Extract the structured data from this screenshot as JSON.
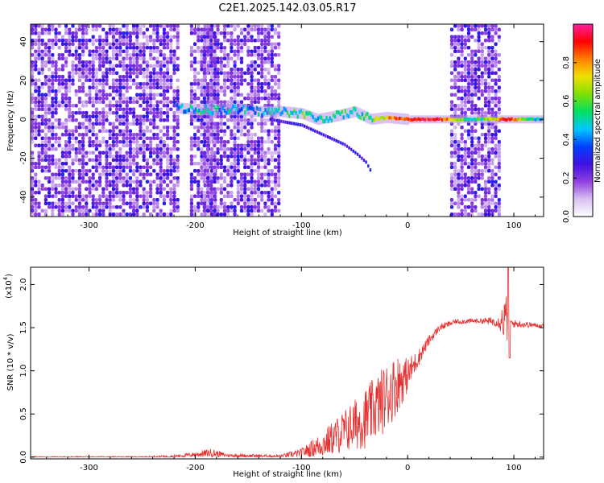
{
  "figure": {
    "title": "C2E1.2025.142.03.05.R17"
  },
  "colors": {
    "colormap": [
      "#ffffff",
      "#d8c0f0",
      "#9040e0",
      "#4010e0",
      "#0040ff",
      "#00c8ff",
      "#00e060",
      "#80e000",
      "#f0e000",
      "#ff8000",
      "#ff0000",
      "#ff20a0"
    ],
    "snr_line": "#e83030"
  },
  "chart_data": [
    {
      "type": "heatmap",
      "name": "spectrogram",
      "xlabel": "Height of straight line (km)",
      "ylabel": "Frequency (Hz)",
      "xlim": [
        -355,
        128
      ],
      "ylim": [
        -50,
        49
      ],
      "xticks": [
        -300,
        -200,
        -100,
        0,
        100
      ],
      "yticks": [
        -40,
        -20,
        0,
        20,
        40
      ],
      "colorbar": {
        "label": "Normalized spectral amplitude",
        "range": [
          0,
          1
        ],
        "ticks": [
          "0.0",
          "0.2",
          "0.4",
          "0.6",
          "0.8"
        ],
        "tick_values": [
          0.0,
          0.2,
          0.4,
          0.6,
          0.8
        ]
      },
      "noise_regions_km": [
        [
          -355,
          -218
        ],
        [
          -205,
          -182
        ],
        [
          -193,
          -120
        ],
        [
          40,
          87
        ]
      ],
      "empty_regions_km": [
        [
          -120,
          -35
        ],
        [
          87,
          128
        ]
      ],
      "signal_track": [
        {
          "x": -218,
          "freq": 6,
          "amp": 0.35
        },
        {
          "x": -200,
          "freq": 5,
          "amp": 0.5
        },
        {
          "x": -180,
          "freq": 5,
          "amp": 0.45
        },
        {
          "x": -160,
          "freq": 5,
          "amp": 0.45
        },
        {
          "x": -140,
          "freq": 4,
          "amp": 0.45
        },
        {
          "x": -120,
          "freq": 4,
          "amp": 0.5
        },
        {
          "x": -100,
          "freq": 3,
          "amp": 0.55
        },
        {
          "x": -85,
          "freq": 0,
          "amp": 0.5
        },
        {
          "x": -65,
          "freq": 2,
          "amp": 0.5
        },
        {
          "x": -50,
          "freq": 4,
          "amp": 0.5
        },
        {
          "x": -35,
          "freq": 0,
          "amp": 0.55
        },
        {
          "x": -20,
          "freq": 1,
          "amp": 0.75
        },
        {
          "x": 0,
          "freq": 0,
          "amp": 0.9
        },
        {
          "x": 30,
          "freq": 0,
          "amp": 0.9
        },
        {
          "x": 60,
          "freq": 0,
          "amp": 0.45
        },
        {
          "x": 90,
          "freq": 0,
          "amp": 0.9
        },
        {
          "x": 128,
          "freq": 0,
          "amp": 0.4
        }
      ],
      "secondary_track": [
        {
          "x": -130,
          "freq": 0
        },
        {
          "x": -100,
          "freq": -3
        },
        {
          "x": -80,
          "freq": -8
        },
        {
          "x": -60,
          "freq": -13
        },
        {
          "x": -48,
          "freq": -18
        },
        {
          "x": -40,
          "freq": -22
        },
        {
          "x": -35,
          "freq": -27
        }
      ]
    },
    {
      "type": "line",
      "name": "snr",
      "xlabel": "Height of straight line (km)",
      "ylabel": "SNR (10 * v/v)",
      "y_multiplier_label": "(x10",
      "y_multiplier_exponent": "4",
      "y_multiplier_close": ")",
      "xlim": [
        -355,
        128
      ],
      "ylim": [
        -0.02,
        2.2
      ],
      "xticks": [
        -300,
        -200,
        -100,
        0,
        100
      ],
      "yticks": [
        0.0,
        0.5,
        1.0,
        1.5,
        2.0
      ],
      "ytick_labels": [
        "0.0",
        "0.5",
        "1.0",
        "1.5",
        "2.0"
      ],
      "envelope": [
        {
          "x": -355,
          "mean": 0.0,
          "noise": 0.01
        },
        {
          "x": -250,
          "mean": 0.0,
          "noise": 0.01
        },
        {
          "x": -220,
          "mean": 0.01,
          "noise": 0.015
        },
        {
          "x": -200,
          "mean": 0.03,
          "noise": 0.03
        },
        {
          "x": -185,
          "mean": 0.05,
          "noise": 0.05
        },
        {
          "x": -170,
          "mean": 0.02,
          "noise": 0.02
        },
        {
          "x": -120,
          "mean": 0.01,
          "noise": 0.02
        },
        {
          "x": -100,
          "mean": 0.05,
          "noise": 0.05
        },
        {
          "x": -80,
          "mean": 0.15,
          "noise": 0.15
        },
        {
          "x": -60,
          "mean": 0.3,
          "noise": 0.25
        },
        {
          "x": -40,
          "mean": 0.45,
          "noise": 0.35
        },
        {
          "x": -20,
          "mean": 0.7,
          "noise": 0.4
        },
        {
          "x": -10,
          "mean": 0.85,
          "noise": 0.35
        },
        {
          "x": 0,
          "mean": 0.95,
          "noise": 0.2
        },
        {
          "x": 10,
          "mean": 1.15,
          "noise": 0.1
        },
        {
          "x": 20,
          "mean": 1.35,
          "noise": 0.06
        },
        {
          "x": 30,
          "mean": 1.5,
          "noise": 0.04
        },
        {
          "x": 45,
          "mean": 1.57,
          "noise": 0.03
        },
        {
          "x": 70,
          "mean": 1.58,
          "noise": 0.03
        },
        {
          "x": 85,
          "mean": 1.57,
          "noise": 0.06
        },
        {
          "x": 93,
          "mean": 1.6,
          "noise": 0.3
        },
        {
          "x": 97,
          "mean": 1.55,
          "noise": 0.05
        },
        {
          "x": 128,
          "mean": 1.52,
          "noise": 0.02
        }
      ],
      "peak": {
        "x": 95,
        "y": 2.2
      },
      "dip": {
        "x": 96,
        "y": 1.15
      }
    }
  ]
}
